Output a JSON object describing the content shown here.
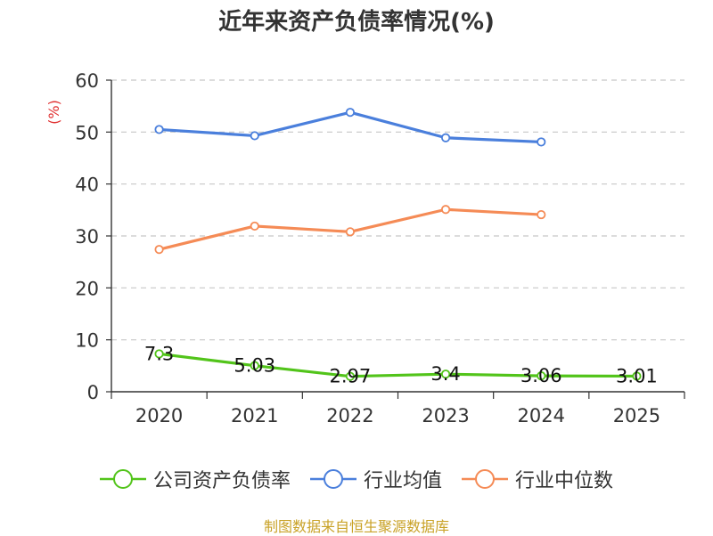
{
  "chart_data": {
    "type": "line",
    "title": "近年来资产负债率情况(%)",
    "ylabel": "(%)",
    "xlabel": "",
    "categories": [
      "2020",
      "2021",
      "2022",
      "2023",
      "2024",
      "2025"
    ],
    "ylim": [
      0,
      60
    ],
    "yticks": [
      0,
      10,
      20,
      30,
      40,
      50,
      60
    ],
    "grid": true,
    "legend_position": "bottom",
    "series": [
      {
        "name": "公司资产负债率",
        "color": "#52c41a",
        "values": [
          7.3,
          5.03,
          2.97,
          3.4,
          3.06,
          3.01
        ],
        "data_labels": [
          "7.3",
          "5.03",
          "2.97",
          "3.4",
          "3.06",
          "3.01"
        ]
      },
      {
        "name": "行业均值",
        "color": "#4a7fdc",
        "values": [
          50.5,
          49.3,
          53.8,
          48.9,
          48.1,
          null
        ]
      },
      {
        "name": "行业中位数",
        "color": "#f58b56",
        "values": [
          27.4,
          31.9,
          30.8,
          35.1,
          34.1,
          null
        ]
      }
    ]
  },
  "source_note": "制图数据来自恒生聚源数据库"
}
